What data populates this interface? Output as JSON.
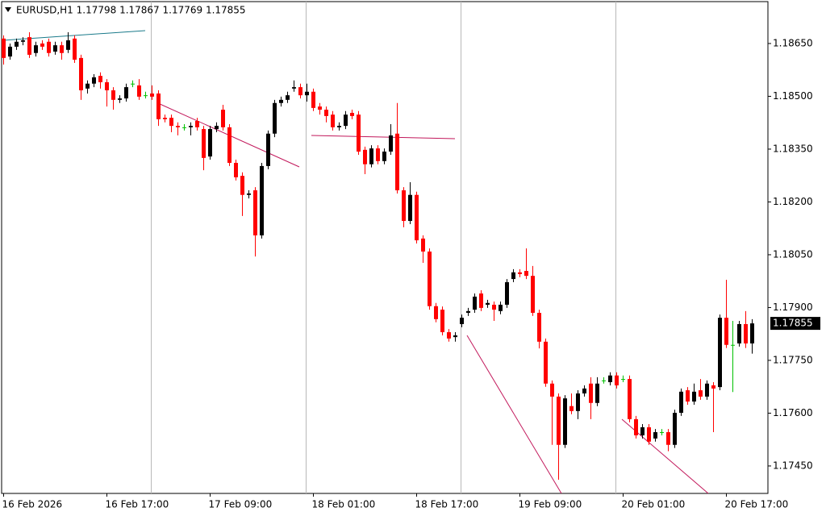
{
  "chart_data": {
    "type": "candlestick",
    "title": "EURUSD,H1 1.17798 1.17867 1.17769 1.17855",
    "categories": [
      "16 Feb 2026",
      null,
      null,
      null,
      null,
      null,
      null,
      null,
      null,
      null,
      null,
      null,
      null,
      null,
      null,
      null,
      "16 Feb 17:00",
      null,
      null,
      null,
      null,
      null,
      null,
      null,
      null,
      null,
      null,
      null,
      null,
      null,
      null,
      null,
      "17 Feb 09:00",
      null,
      null,
      null,
      null,
      null,
      null,
      null,
      null,
      null,
      null,
      null,
      null,
      null,
      null,
      null,
      "18 Feb 01:00",
      null,
      null,
      null,
      null,
      null,
      null,
      null,
      null,
      null,
      null,
      null,
      null,
      null,
      null,
      null,
      "18 Feb 17:00",
      null,
      null,
      null,
      null,
      null,
      null,
      null,
      null,
      null,
      null,
      null,
      null,
      null,
      null,
      null,
      "19 Feb 09:00",
      null,
      null,
      null,
      null,
      null,
      null,
      null,
      null,
      null,
      null,
      null,
      null,
      null,
      null,
      null,
      "20 Feb 01:00",
      null,
      null,
      null,
      null,
      null,
      null,
      null,
      null,
      null,
      null,
      null,
      null,
      null,
      null,
      null,
      "20 Feb 17:00",
      null,
      null,
      null,
      null
    ],
    "open": [
      1.18664,
      1.18613,
      1.18641,
      1.18655,
      1.18668,
      1.18623,
      1.1865,
      1.18655,
      1.18627,
      1.18645,
      1.18632,
      1.18664,
      1.18609,
      1.18522,
      1.18536,
      1.18558,
      1.1854,
      1.18517,
      1.1849,
      1.18494,
      1.18536,
      1.18531,
      1.18503,
      1.18508,
      1.18508,
      1.18439,
      1.18439,
      1.18416,
      1.18412,
      1.18412,
      1.1843,
      1.18407,
      1.18329,
      1.18407,
      1.18462,
      1.18412,
      1.18311,
      1.18274,
      1.1822,
      1.18233,
      1.18105,
      1.18302,
      1.18394,
      1.18481,
      1.1849,
      1.18522,
      1.18526,
      1.18503,
      1.18513,
      1.18471,
      1.18462,
      1.18448,
      1.18412,
      1.18416,
      1.18453,
      1.18448,
      1.18348,
      1.18307,
      1.18352,
      1.18316,
      1.18343,
      1.18394,
      1.18233,
      1.18146,
      1.1822,
      1.18096,
      1.18059,
      1.17904,
      1.17894,
      1.1783,
      1.17816,
      1.17853,
      1.17885,
      1.17894,
      1.1794,
      1.17908,
      1.17908,
      1.1789,
      1.17908,
      1.17981,
      1.18,
      1.18004,
      1.1799,
      1.17885,
      1.17803,
      1.17684,
      1.17647,
      1.1751,
      1.1762,
      1.17606,
      1.17656,
      1.17684,
      1.17629,
      1.17693,
      1.17688,
      1.17707,
      1.17697,
      1.17697,
      1.17583,
      1.17537,
      1.1756,
      1.17528,
      1.17546,
      1.17546,
      1.1751,
      1.17601,
      1.17665,
      1.17633,
      1.17665,
      1.17647,
      1.17679,
      1.17674,
      1.17871,
      1.17794,
      1.17798,
      1.17853,
      1.17798
    ],
    "high": [
      1.18673,
      1.1865,
      1.18664,
      1.18668,
      1.18682,
      1.18655,
      1.18659,
      1.18664,
      1.18655,
      1.18655,
      1.18682,
      1.18673,
      1.18618,
      1.18545,
      1.18563,
      1.18568,
      1.18549,
      1.18526,
      1.18503,
      1.18536,
      1.18545,
      1.18549,
      1.18513,
      1.18531,
      1.18517,
      1.18448,
      1.18448,
      1.18426,
      1.18421,
      1.18426,
      1.18439,
      1.18416,
      1.18416,
      1.18426,
      1.18476,
      1.18421,
      1.1832,
      1.18284,
      1.18233,
      1.18242,
      1.18311,
      1.18403,
      1.1849,
      1.18499,
      1.18513,
      1.18545,
      1.18536,
      1.18536,
      1.18522,
      1.18481,
      1.18471,
      1.18458,
      1.18426,
      1.18458,
      1.18462,
      1.18458,
      1.18357,
      1.18361,
      1.18361,
      1.18352,
      1.18421,
      1.18481,
      1.18242,
      1.18256,
      1.18229,
      1.18105,
      1.18068,
      1.17913,
      1.17903,
      1.17839,
      1.1783,
      1.1788,
      1.17899,
      1.1794,
      1.17949,
      1.17922,
      1.17917,
      1.17917,
      1.17981,
      1.18009,
      1.18009,
      1.18068,
      1.18018,
      1.17894,
      1.17812,
      1.17693,
      1.17656,
      1.17651,
      1.17656,
      1.17665,
      1.17679,
      1.17702,
      1.17702,
      1.17702,
      1.17716,
      1.17716,
      1.17707,
      1.17707,
      1.17592,
      1.17569,
      1.17569,
      1.17555,
      1.17555,
      1.17555,
      1.1761,
      1.1767,
      1.17674,
      1.17684,
      1.17697,
      1.17693,
      1.17688,
      1.1788,
      1.17979,
      1.17862,
      1.17862,
      1.1789,
      1.17867
    ],
    "low": [
      1.1859,
      1.18604,
      1.18632,
      1.18645,
      1.18609,
      1.18613,
      1.18632,
      1.18613,
      1.18618,
      1.18604,
      1.18623,
      1.18595,
      1.1849,
      1.18508,
      1.18526,
      1.18522,
      1.18471,
      1.18462,
      1.18481,
      1.18485,
      1.18526,
      1.1849,
      1.18494,
      1.1849,
      1.18416,
      1.18426,
      1.18398,
      1.18389,
      1.18403,
      1.18389,
      1.18403,
      1.1829,
      1.1832,
      1.18398,
      1.18403,
      1.18302,
      1.18261,
      1.1816,
      1.1821,
      1.18045,
      1.18096,
      1.18293,
      1.18384,
      1.18471,
      1.18481,
      1.18513,
      1.18494,
      1.18485,
      1.18458,
      1.18448,
      1.18426,
      1.18403,
      1.18403,
      1.18407,
      1.18435,
      1.18334,
      1.18279,
      1.18298,
      1.18307,
      1.18307,
      1.18334,
      1.18224,
      1.18128,
      1.18137,
      1.18082,
      1.18027,
      1.17894,
      1.17858,
      1.17821,
      1.17803,
      1.17803,
      1.17844,
      1.17876,
      1.17885,
      1.1789,
      1.17899,
      1.17862,
      1.17881,
      1.17899,
      1.17972,
      1.17986,
      1.17981,
      1.17876,
      1.17784,
      1.17675,
      1.1751,
      1.17411,
      1.17501,
      1.17597,
      1.17583,
      1.17647,
      1.17583,
      1.1762,
      1.17684,
      1.17679,
      1.1767,
      1.17688,
      1.17574,
      1.17528,
      1.17528,
      1.1751,
      1.17519,
      1.17537,
      1.17492,
      1.17501,
      1.17592,
      1.17624,
      1.17624,
      1.17638,
      1.17638,
      1.17546,
      1.17665,
      1.17785,
      1.1766,
      1.17789,
      1.17785,
      1.17769
    ],
    "close": [
      1.18609,
      1.18641,
      1.18655,
      1.18659,
      1.18618,
      1.18645,
      1.18641,
      1.18623,
      1.18645,
      1.18623,
      1.18659,
      1.18604,
      1.18517,
      1.18536,
      1.18554,
      1.1854,
      1.18517,
      1.1849,
      1.18494,
      1.18526,
      1.18536,
      1.18499,
      1.18503,
      1.18499,
      1.18435,
      1.18435,
      1.18416,
      1.18412,
      1.18412,
      1.18416,
      1.18412,
      1.18325,
      1.18407,
      1.18416,
      1.18412,
      1.18311,
      1.1827,
      1.1822,
      1.18224,
      1.18105,
      1.18302,
      1.18394,
      1.18481,
      1.1849,
      1.18503,
      1.18526,
      1.18503,
      1.18513,
      1.18467,
      1.18462,
      1.18444,
      1.18412,
      1.18416,
      1.18448,
      1.18444,
      1.18343,
      1.18307,
      1.18352,
      1.18316,
      1.18343,
      1.18389,
      1.18233,
      1.18146,
      1.1822,
      1.18091,
      1.18059,
      1.17904,
      1.17867,
      1.1783,
      1.17812,
      1.17821,
      1.17871,
      1.1789,
      1.17931,
      1.17899,
      1.17913,
      1.17894,
      1.17908,
      1.17972,
      1.18,
      1.17995,
      1.1799,
      1.17885,
      1.17803,
      1.17684,
      1.17647,
      1.1751,
      1.17642,
      1.17606,
      1.17656,
      1.1767,
      1.17629,
      1.17684,
      1.17693,
      1.17707,
      1.17679,
      1.17697,
      1.17583,
      1.17537,
      1.1756,
      1.17519,
      1.17546,
      1.17546,
      1.1751,
      1.17601,
      1.17661,
      1.17633,
      1.17661,
      1.17647,
      1.17684,
      1.1767,
      1.17871,
      1.17794,
      1.17794,
      1.17853,
      1.17798,
      1.17855
    ],
    "up_color": "#000000",
    "down_color": "#ff0000",
    "doji_color": "#00c000",
    "ylim": [
      1.17372,
      1.18769
    ],
    "yticks": [
      {
        "value": 1.1865,
        "label": "1.18650"
      },
      {
        "value": 1.185,
        "label": "1.18500"
      },
      {
        "value": 1.1835,
        "label": "1.18350"
      },
      {
        "value": 1.182,
        "label": "1.18200"
      },
      {
        "value": 1.1805,
        "label": "1.18050"
      },
      {
        "value": 1.179,
        "label": "1.17900"
      },
      {
        "value": 1.1775,
        "label": "1.17750"
      },
      {
        "value": 1.176,
        "label": "1.17600"
      },
      {
        "value": 1.1745,
        "label": "1.17450"
      }
    ],
    "price_marker": {
      "value": 1.17855,
      "label": "1.17855"
    }
  }
}
